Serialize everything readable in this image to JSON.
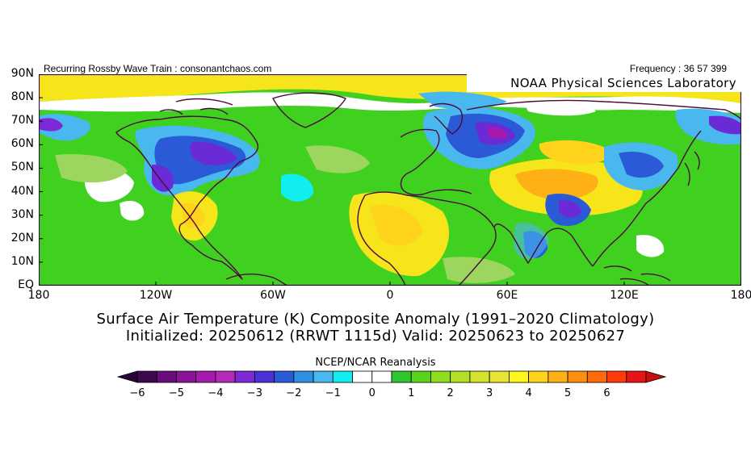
{
  "header": {
    "left_text": "Recurring Rossby Wave Train : consonantchaos.com",
    "right_text": "Frequency : 36 57 399",
    "lab_label": "NOAA Physical Sciences Laboratory"
  },
  "axes": {
    "lat_labels": [
      "90N",
      "80N",
      "70N",
      "60N",
      "50N",
      "40N",
      "30N",
      "20N",
      "10N",
      "EQ"
    ],
    "lon_labels": [
      "180",
      "120W",
      "60W",
      "0",
      "60E",
      "120E",
      "180"
    ]
  },
  "title_line1": "Surface Air Temperature (K) Composite Anomaly (1991–2020 Climatology)",
  "title_line2": "Initialized: 20250612 (RRWT 1115d) Valid: 20250623 to 20250627",
  "colorbar": {
    "title": "NCEP/NCAR Reanalysis",
    "tick_labels": [
      "-6",
      "-5",
      "-4",
      "-3",
      "-2",
      "-1",
      "0",
      "1",
      "2",
      "3",
      "4",
      "5",
      "6"
    ],
    "colors": [
      "#3c0a4a",
      "#6a0c7a",
      "#8b1596",
      "#a61ab0",
      "#b52ab8",
      "#7d2ad6",
      "#4a32d8",
      "#2a5ad6",
      "#2f8fe2",
      "#49b8ef",
      "#11eef0",
      "#ffffff",
      "#ffffff",
      "#2ec62e",
      "#5ad41a",
      "#8edd1e",
      "#b4e02a",
      "#d3e22e",
      "#e8e534",
      "#fff51c",
      "#ffd21c",
      "#ffb014",
      "#ff8f10",
      "#ff6a0a",
      "#ff3b0a",
      "#e61414"
    ],
    "under_color": "#26053a",
    "over_color": "#c80f0f"
  },
  "map_colors": {
    "base": "#40d020",
    "ocean_light": "#9cd65e",
    "warm1": "#d6e32a",
    "warm2": "#f5e51a",
    "warm3": "#ffd21c",
    "warm4": "#ffb014",
    "white": "#ffffff",
    "cyan": "#11eef0",
    "cool1": "#49b8ef",
    "cool2": "#2a5ad6",
    "cool3": "#6a2ad6",
    "cool4": "#a61ab0",
    "coast": "#4d0a3c"
  }
}
